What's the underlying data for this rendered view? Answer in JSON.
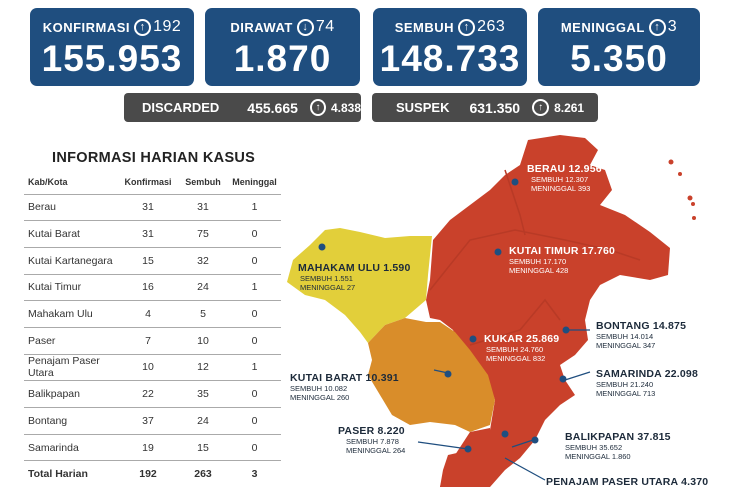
{
  "stats": {
    "konfirmasi": {
      "label": "KONFIRMASI",
      "delta": "192",
      "value": "155.953"
    },
    "dirawat": {
      "label": "DIRAWAT",
      "delta": "74",
      "value": "1.870"
    },
    "sembuh": {
      "label": "SEMBUH",
      "delta": "263",
      "value": "148.733"
    },
    "meninggal": {
      "label": "MENINGGAL",
      "delta": "3",
      "value": "5.350"
    }
  },
  "secondary": {
    "discarded": {
      "label": "DISCARDED",
      "value": "455.665",
      "delta": "4.838"
    },
    "suspek": {
      "label": "SUSPEK",
      "value": "631.350",
      "delta": "8.261"
    }
  },
  "table": {
    "title": "INFORMASI HARIAN KASUS",
    "headers": [
      "Kab/Kota",
      "Konfirmasi",
      "Sembuh",
      "Meninggal"
    ],
    "rows": [
      [
        "Berau",
        "31",
        "31",
        "1"
      ],
      [
        "Kutai Barat",
        "31",
        "75",
        "0"
      ],
      [
        "Kutai Kartanegara",
        "15",
        "32",
        "0"
      ],
      [
        "Kutai Timur",
        "16",
        "24",
        "1"
      ],
      [
        "Mahakam Ulu",
        "4",
        "5",
        "0"
      ],
      [
        "Paser",
        "7",
        "10",
        "0"
      ],
      [
        "Penajam Paser Utara",
        "10",
        "12",
        "1"
      ],
      [
        "Balikpapan",
        "22",
        "35",
        "0"
      ],
      [
        "Bontang",
        "37",
        "24",
        "0"
      ],
      [
        "Samarinda",
        "19",
        "15",
        "0"
      ]
    ],
    "total": [
      "Total Harian",
      "192",
      "263",
      "3"
    ]
  },
  "map_labels": {
    "berau": {
      "name": "BERAU  12.956",
      "sembuh": "SEMBUH 12.307",
      "meninggal": "MENINGGAL 393"
    },
    "kutim": {
      "name": "KUTAI TIMUR  17.760",
      "sembuh": "SEMBUH 17.170",
      "meninggal": "MENINGGAL 428"
    },
    "mahulu": {
      "name": "MAHAKAM ULU  1.590",
      "sembuh": "SEMBUH 1.551",
      "meninggal": "MENINGGAL 27"
    },
    "kukar": {
      "name": "KUKAR  25.869",
      "sembuh": "SEMBUH 24.760",
      "meninggal": "MENINGGAL 832"
    },
    "bontang": {
      "name": "BONTANG   14.875",
      "sembuh": "SEMBUH 14.014",
      "meninggal": "MENINGGAL 347"
    },
    "kubar": {
      "name": "KUTAI BARAT  10.391",
      "sembuh": "SEMBUH 10.082",
      "meninggal": "MENINGGAL 260"
    },
    "samarinda": {
      "name": "SAMARINDA   22.098",
      "sembuh": "SEMBUH 21.240",
      "meninggal": "MENINGGAL 713"
    },
    "paser": {
      "name": "PASER  8.220",
      "sembuh": "SEMBUH 7.878",
      "meninggal": "MENINGGAL 264"
    },
    "balikpapan": {
      "name": "BALIKPAPAN   37.815",
      "sembuh": "SEMBUH 35.652",
      "meninggal": "MENINGGAL 1.860"
    },
    "ppu": {
      "name": "PENAJAM PASER UTARA 4.370"
    }
  },
  "colors": {
    "card": "#1f4e7f",
    "bar": "#4a4a4a",
    "red": "#c9412b",
    "orange": "#d98d2a",
    "yellow": "#e2cf3a"
  }
}
